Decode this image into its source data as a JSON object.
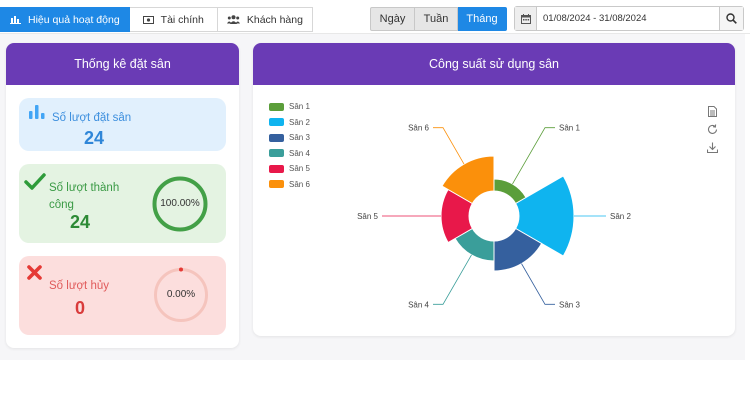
{
  "tabs": [
    {
      "label": "Hiệu quả hoạt động",
      "icon": "bar-chart-icon",
      "active": true
    },
    {
      "label": "Tài chính",
      "icon": "money-icon",
      "active": false
    },
    {
      "label": "Khách hàng",
      "icon": "users-icon",
      "active": false
    }
  ],
  "periods": [
    {
      "label": "Ngày",
      "active": false
    },
    {
      "label": "Tuần",
      "active": false
    },
    {
      "label": "Tháng",
      "active": true
    }
  ],
  "date_range": {
    "value": "01/08/2024 - 31/08/2024",
    "icon": "calendar-icon",
    "search_icon": "search-icon"
  },
  "stats_panel": {
    "title": "Thống kê đặt sân",
    "booking": {
      "label": "Số lượt đặt sân",
      "value": "24",
      "icon": "bar-chart-icon",
      "color": "#42a5f5"
    },
    "success": {
      "label_line1": "Số lượt thành",
      "label_line2": "công",
      "value": "24",
      "icon": "check-icon",
      "percent_text": "100.00%",
      "percent": 100,
      "color": "#43a047"
    },
    "cancel": {
      "label": "Số lượt hủy",
      "value": "0",
      "icon": "cross-icon",
      "percent_text": "0.00%",
      "percent": 0,
      "color": "#e53935"
    }
  },
  "capacity_panel": {
    "title": "Công suất sử dụng sân",
    "tool_icons": [
      "document-icon",
      "refresh-icon",
      "download-icon"
    ]
  },
  "chart_data": {
    "type": "pie",
    "variant": "nightingale-rose",
    "categories": [
      "Sân 1",
      "Sân 2",
      "Sân 3",
      "Sân 4",
      "Sân 5",
      "Sân 6"
    ],
    "values": [
      1.2,
      5.5,
      3.0,
      2.0,
      2.8,
      3.5
    ],
    "colors": [
      "#5b9e3a",
      "#0fb4ef",
      "#35609e",
      "#3a9e9a",
      "#e8184a",
      "#fb900b"
    ],
    "legend_position": "top-left"
  }
}
